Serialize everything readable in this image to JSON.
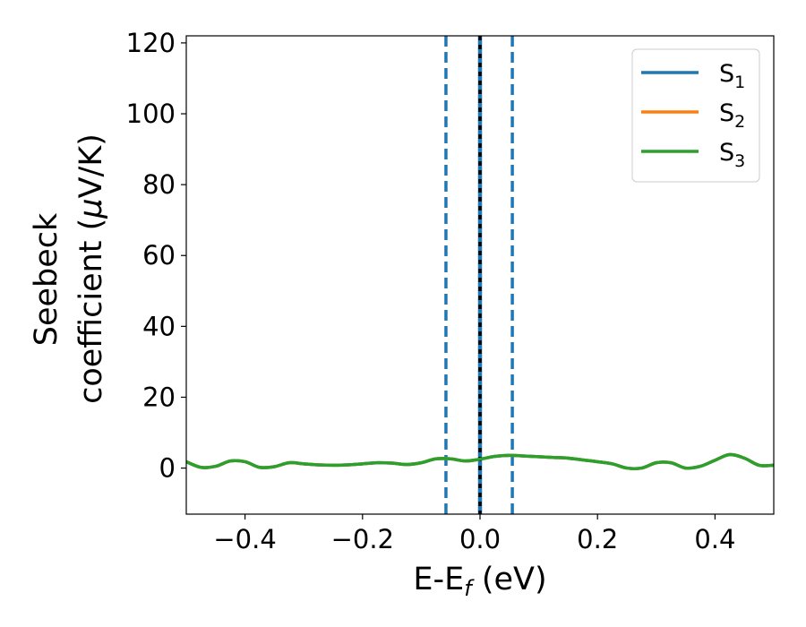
{
  "chart_data": {
    "type": "line",
    "title": "",
    "xlabel": {
      "main": "E-E",
      "sub": "f",
      "unit": " (eV)"
    },
    "ylabel": {
      "line1": "Seebeck",
      "line2_prefix": "coefficient  (",
      "line2_mu": "μ",
      "line2_suffix": "V/K)"
    },
    "xlim": [
      -0.5,
      0.5
    ],
    "ylim": [
      -13,
      122
    ],
    "xticks": [
      -0.4,
      -0.2,
      0.0,
      0.2,
      0.4
    ],
    "xtick_labels": [
      "−0.4",
      "−0.2",
      "0.0",
      "0.2",
      "0.4"
    ],
    "yticks": [
      0,
      20,
      40,
      60,
      80,
      100,
      120
    ],
    "ytick_labels": [
      "0",
      "20",
      "40",
      "60",
      "80",
      "100",
      "120"
    ],
    "grid": false,
    "legend_position": "top-right",
    "vlines": [
      {
        "x": -0.058,
        "style": "dashed",
        "color": "#1f77b4"
      },
      {
        "x": 0.055,
        "style": "dashed",
        "color": "#1f77b4"
      },
      {
        "x": 0.0,
        "style": "solid",
        "color": "#1f77b4"
      },
      {
        "x": 0.0,
        "style": "dashed",
        "color": "#000000"
      }
    ],
    "series": [
      {
        "name": "S",
        "sub": "1",
        "color": "#1f77b4",
        "x": [
          -0.5,
          -0.475,
          -0.45,
          -0.425,
          -0.4,
          -0.375,
          -0.35,
          -0.325,
          -0.3,
          -0.275,
          -0.25,
          -0.225,
          -0.2,
          -0.175,
          -0.15,
          -0.125,
          -0.1,
          -0.075,
          -0.05,
          -0.025,
          0,
          0.025,
          0.05,
          0.075,
          0.1,
          0.125,
          0.15,
          0.175,
          0.2,
          0.225,
          0.25,
          0.275,
          0.3,
          0.325,
          0.35,
          0.375,
          0.4,
          0.425,
          0.45,
          0.475,
          0.5
        ],
        "y": [
          1.8,
          0.2,
          0.5,
          2.0,
          1.8,
          0.2,
          0.4,
          1.5,
          1.2,
          0.9,
          0.8,
          0.9,
          1.2,
          1.5,
          1.4,
          1.0,
          1.5,
          2.6,
          2.6,
          2.0,
          2.5,
          3.3,
          3.6,
          3.4,
          3.2,
          3.0,
          2.8,
          2.3,
          1.8,
          1.2,
          0.0,
          0.0,
          1.5,
          1.5,
          0.0,
          0.5,
          2.2,
          3.8,
          2.8,
          0.8,
          0.8
        ]
      },
      {
        "name": "S",
        "sub": "2",
        "color": "#ff7f0e",
        "x": [
          -0.5,
          -0.475,
          -0.45,
          -0.425,
          -0.4,
          -0.375,
          -0.35,
          -0.325,
          -0.3,
          -0.275,
          -0.25,
          -0.225,
          -0.2,
          -0.175,
          -0.15,
          -0.125,
          -0.1,
          -0.075,
          -0.05,
          -0.025,
          0,
          0.025,
          0.05,
          0.075,
          0.1,
          0.125,
          0.15,
          0.175,
          0.2,
          0.225,
          0.25,
          0.275,
          0.3,
          0.325,
          0.35,
          0.375,
          0.4,
          0.425,
          0.45,
          0.475,
          0.5
        ],
        "y": [
          1.8,
          0.2,
          0.5,
          2.0,
          1.8,
          0.2,
          0.4,
          1.5,
          1.2,
          0.9,
          0.8,
          0.9,
          1.2,
          1.5,
          1.4,
          1.0,
          1.5,
          2.6,
          2.6,
          2.0,
          2.5,
          3.3,
          3.6,
          3.4,
          3.2,
          3.0,
          2.8,
          2.3,
          1.8,
          1.2,
          0.0,
          0.0,
          1.5,
          1.5,
          0.0,
          0.5,
          2.2,
          3.8,
          2.8,
          0.8,
          0.8
        ]
      },
      {
        "name": "S",
        "sub": "3",
        "color": "#2ca02c",
        "x": [
          -0.5,
          -0.475,
          -0.45,
          -0.425,
          -0.4,
          -0.375,
          -0.35,
          -0.325,
          -0.3,
          -0.275,
          -0.25,
          -0.225,
          -0.2,
          -0.175,
          -0.15,
          -0.125,
          -0.1,
          -0.075,
          -0.05,
          -0.025,
          0,
          0.025,
          0.05,
          0.075,
          0.1,
          0.125,
          0.15,
          0.175,
          0.2,
          0.225,
          0.25,
          0.275,
          0.3,
          0.325,
          0.35,
          0.375,
          0.4,
          0.425,
          0.45,
          0.475,
          0.5
        ],
        "y": [
          1.8,
          0.2,
          0.5,
          2.0,
          1.8,
          0.2,
          0.4,
          1.5,
          1.2,
          0.9,
          0.8,
          0.9,
          1.2,
          1.5,
          1.4,
          1.0,
          1.5,
          2.6,
          2.6,
          2.0,
          2.5,
          3.3,
          3.6,
          3.4,
          3.2,
          3.0,
          2.8,
          2.3,
          1.8,
          1.2,
          0.0,
          0.0,
          1.5,
          1.5,
          0.0,
          0.5,
          2.2,
          3.8,
          2.8,
          0.8,
          0.8
        ]
      }
    ]
  }
}
